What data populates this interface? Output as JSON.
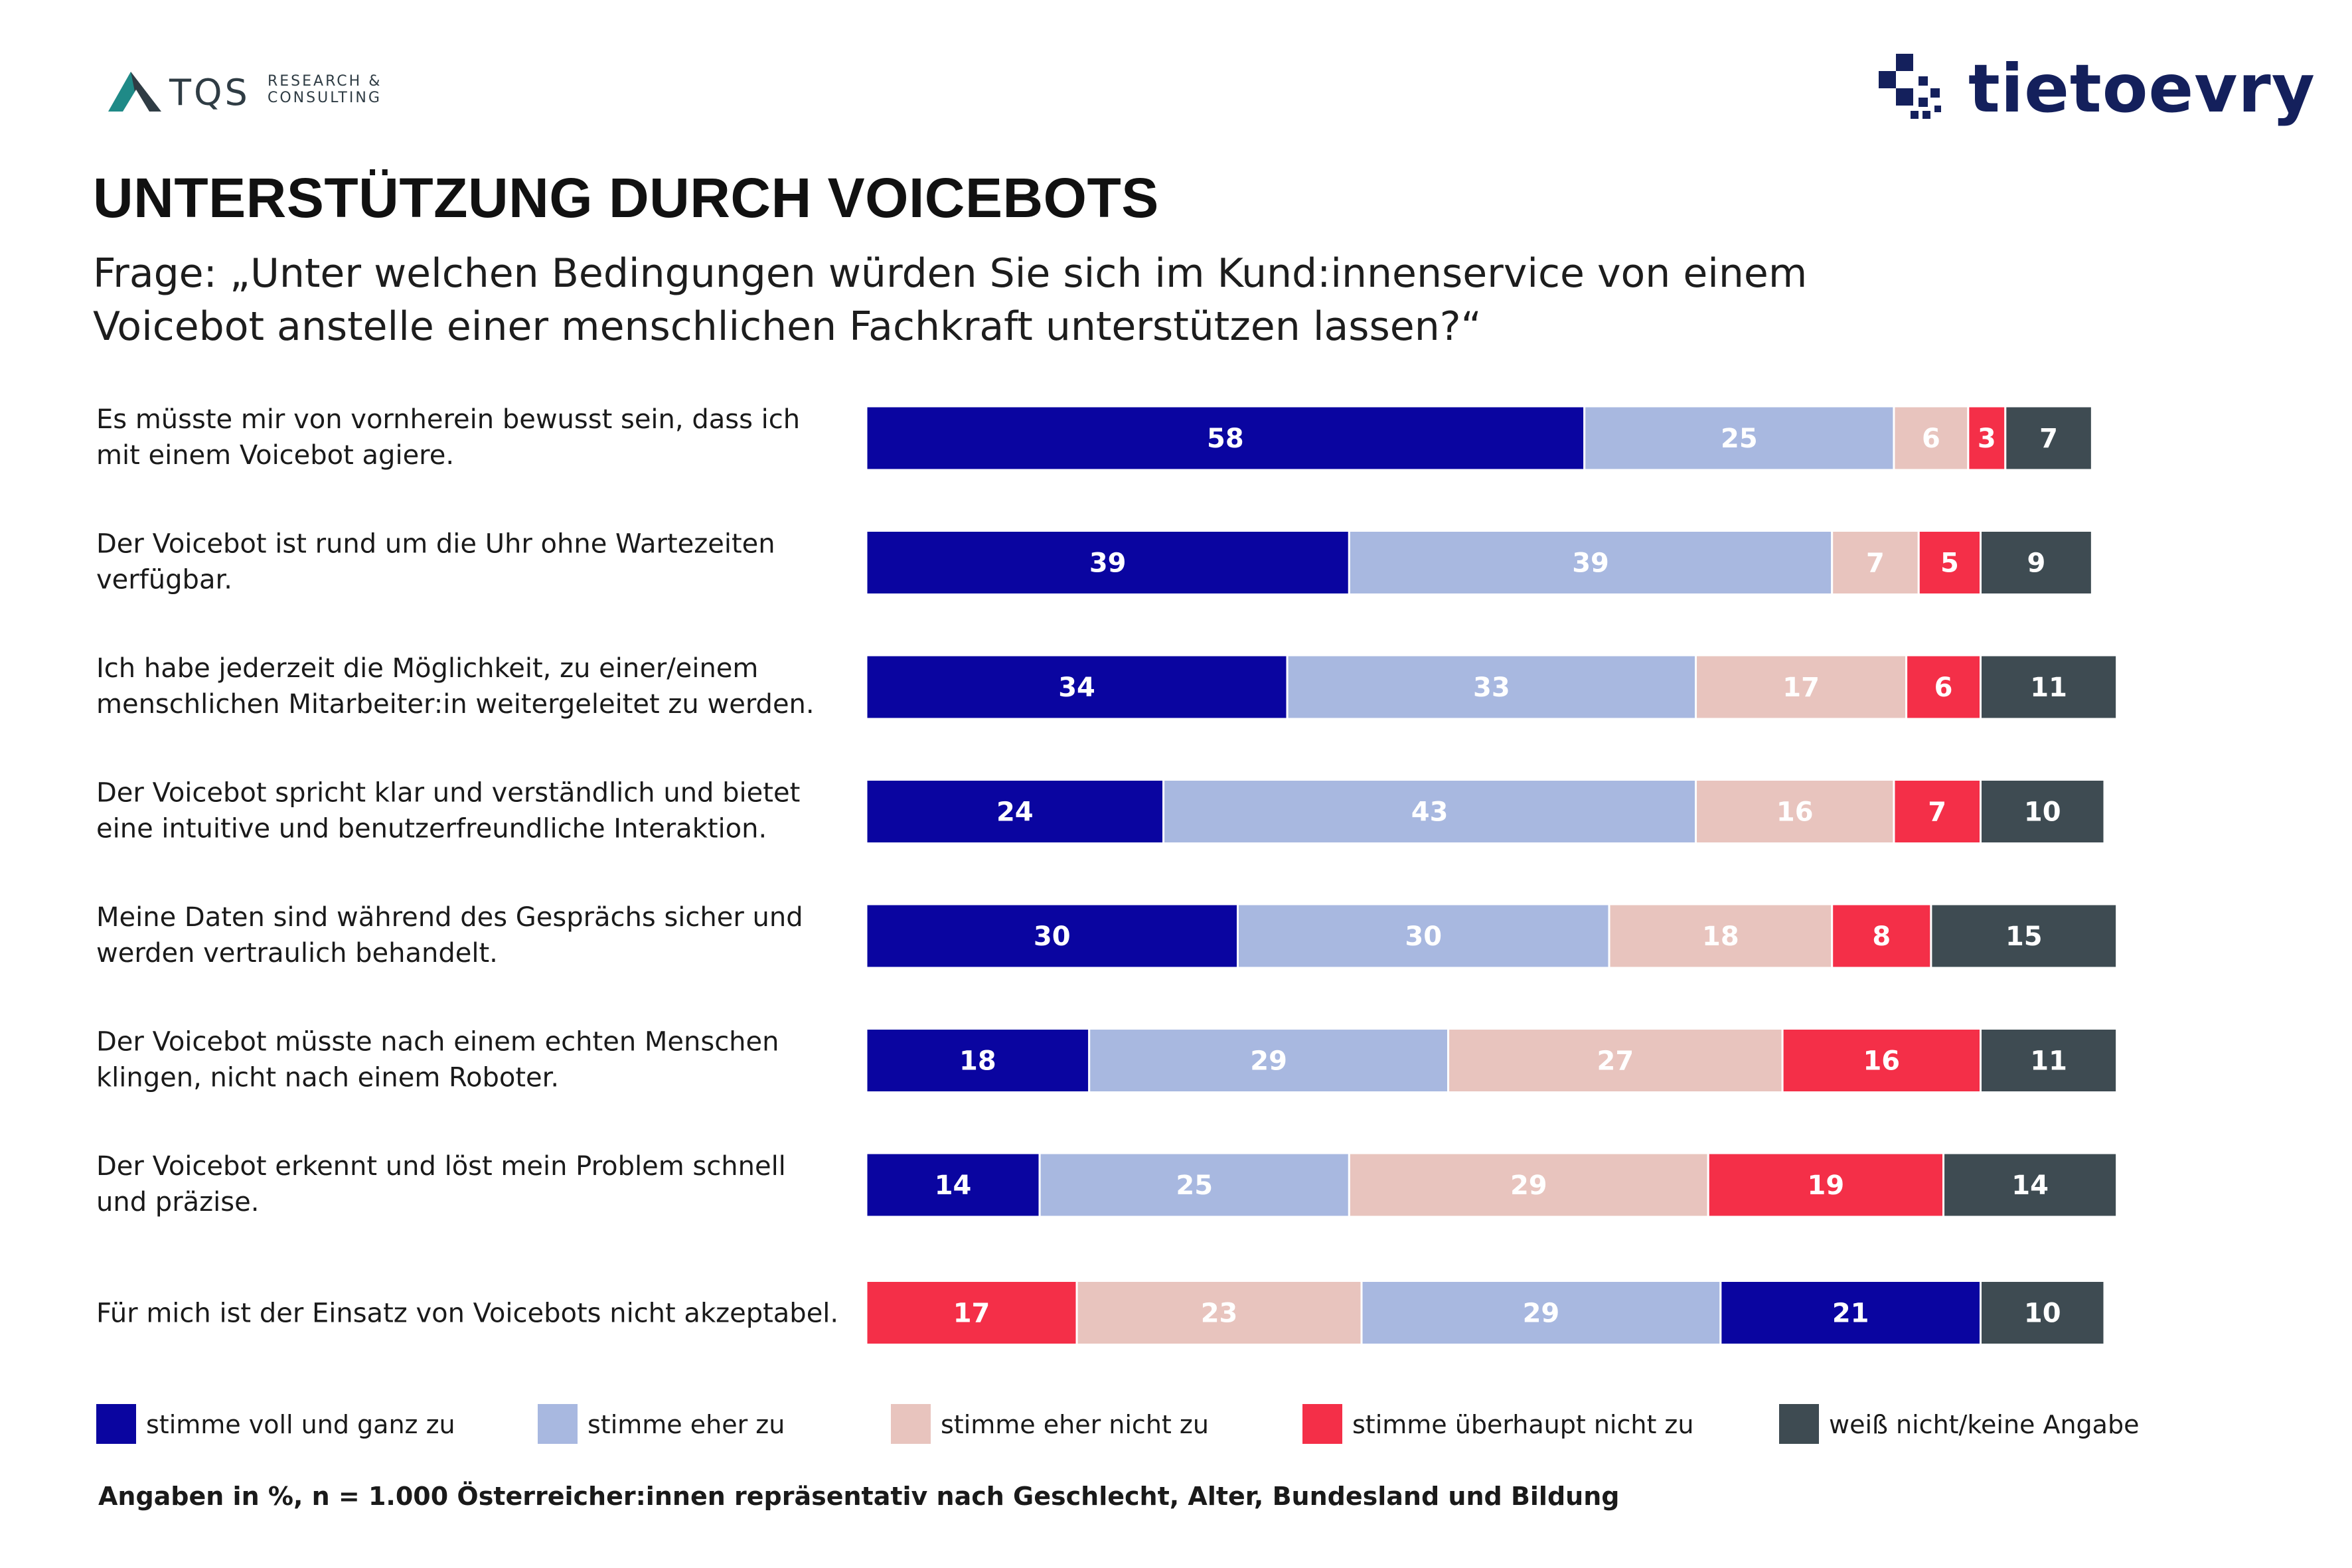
{
  "logos": {
    "left": {
      "name": "TQS",
      "subtitle_line1": "RESEARCH &",
      "subtitle_line2": "CONSULTING"
    },
    "right": {
      "name": "tietoevry"
    }
  },
  "colors": {
    "stimme_voll": "#0a05a0",
    "stimme_eher": "#a8b8e0",
    "eher_nicht": "#e8c4be",
    "ueberhaupt_nicht": "#f42f48",
    "weiss_nicht": "#3e4b52",
    "brand_teal": "#1f8a87",
    "brand_navy": "#14205c"
  },
  "chart_data": {
    "type": "bar",
    "orientation": "horizontal",
    "stacked": true,
    "unit": "%",
    "title": "UNTERSTÜTZUNG DURCH VOICEBOTS",
    "subtitle": "Frage: „Unter welchen Bedingungen würden Sie sich im Kund:innenservice von einem Voicebot anstelle einer menschlichen Fachkraft unterstützen lassen?“",
    "categories": [
      [
        "Es müsste mir von vornherein bewusst sein, dass ich",
        "mit einem Voicebot agiere."
      ],
      [
        "Der Voicebot ist rund um die Uhr ohne Wartezeiten",
        "verfügbar."
      ],
      [
        "Ich habe jederzeit die Möglichkeit, zu einer/einem",
        "menschlichen Mitarbeiter:in weitergeleitet zu werden."
      ],
      [
        "Der Voicebot spricht klar und verständlich und bietet",
        "eine intuitive und benutzerfreundliche Interaktion."
      ],
      [
        "Meine Daten sind während des Gesprächs sicher und",
        "werden vertraulich behandelt."
      ],
      [
        "Der Voicebot müsste nach einem echten Menschen",
        "klingen, nicht nach einem Roboter."
      ],
      [
        "Der Voicebot erkennt und löst mein Problem schnell",
        "und präzise."
      ],
      [
        "Für mich ist der Einsatz von Voicebots nicht akzeptabel."
      ]
    ],
    "series": [
      {
        "name": "stimme voll und ganz zu",
        "color": "#0a05a0",
        "values": [
          58,
          39,
          34,
          24,
          30,
          18,
          14,
          21
        ]
      },
      {
        "name": "stimme eher zu",
        "color": "#a8b8e0",
        "values": [
          25,
          39,
          33,
          43,
          30,
          29,
          25,
          29
        ]
      },
      {
        "name": "stimme eher nicht zu",
        "color": "#e8c4be",
        "values": [
          6,
          7,
          17,
          16,
          18,
          27,
          29,
          23
        ]
      },
      {
        "name": "stimme überhaupt nicht zu",
        "color": "#f42f48",
        "values": [
          3,
          5,
          6,
          7,
          8,
          16,
          19,
          17
        ]
      },
      {
        "name": "weiß nicht/keine Angabe",
        "color": "#3e4b52",
        "values": [
          7,
          9,
          11,
          10,
          15,
          11,
          14,
          10
        ]
      }
    ],
    "segment_order": [
      [
        0,
        1,
        2,
        3,
        4
      ],
      [
        0,
        1,
        2,
        3,
        4
      ],
      [
        0,
        1,
        2,
        3,
        4
      ],
      [
        0,
        1,
        2,
        3,
        4
      ],
      [
        0,
        1,
        2,
        3,
        4
      ],
      [
        0,
        1,
        2,
        3,
        4
      ],
      [
        0,
        1,
        2,
        3,
        4
      ],
      [
        3,
        2,
        1,
        0,
        4
      ]
    ],
    "xlim": [
      0,
      100
    ],
    "gridlines": false,
    "axes_visible": false,
    "legend_position": "bottom"
  },
  "legend": [
    {
      "label": "stimme voll und ganz zu",
      "color": "#0a05a0"
    },
    {
      "label": "stimme eher zu",
      "color": "#a8b8e0"
    },
    {
      "label": "stimme eher nicht zu",
      "color": "#e8c4be"
    },
    {
      "label": "stimme überhaupt nicht zu",
      "color": "#f42f48"
    },
    {
      "label": "weiß nicht/keine Angabe",
      "color": "#3e4b52"
    }
  ],
  "footnote": "Angaben in %, n = 1.000 Österreicher:innen repräsentativ nach Geschlecht, Alter, Bundesland und Bildung"
}
